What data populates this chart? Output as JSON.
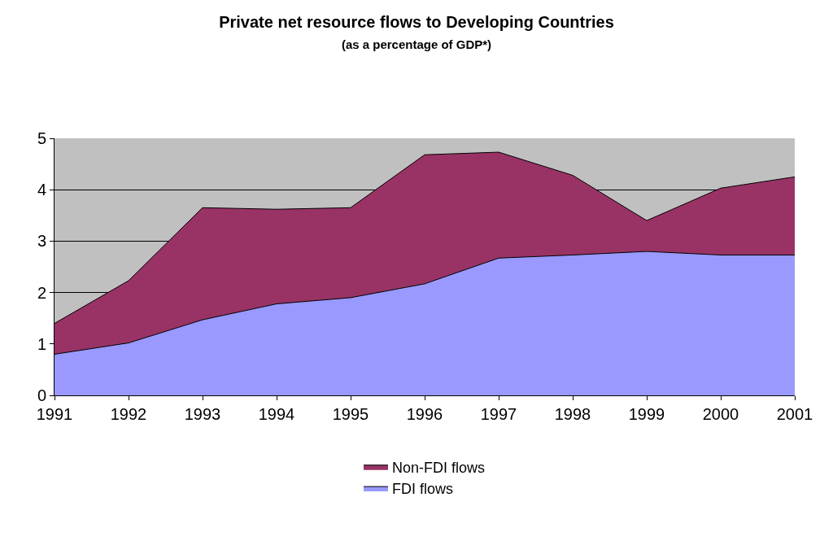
{
  "chart_data": {
    "type": "area",
    "title": "Private net resource flows to Developing Countries",
    "subtitle": "(as a percentage of GDP*)",
    "categories": [
      "1991",
      "1992",
      "1993",
      "1994",
      "1995",
      "1996",
      "1997",
      "1998",
      "1999",
      "2000",
      "2001"
    ],
    "stacked": true,
    "series": [
      {
        "name": "FDI flows",
        "color": "#9999ff",
        "values": [
          0.8,
          1.02,
          1.47,
          1.78,
          1.9,
          2.17,
          2.67,
          2.73,
          2.8,
          2.73,
          2.73
        ]
      },
      {
        "name": "Non-FDI flows",
        "color": "#993366",
        "values": [
          0.6,
          1.21,
          2.18,
          1.84,
          1.75,
          2.51,
          2.06,
          1.55,
          0.6,
          1.3,
          1.52
        ]
      }
    ],
    "ylim": [
      0,
      5
    ],
    "yticks": [
      0,
      1,
      2,
      3,
      4,
      5
    ],
    "grid": "y",
    "legend": "bottom"
  }
}
